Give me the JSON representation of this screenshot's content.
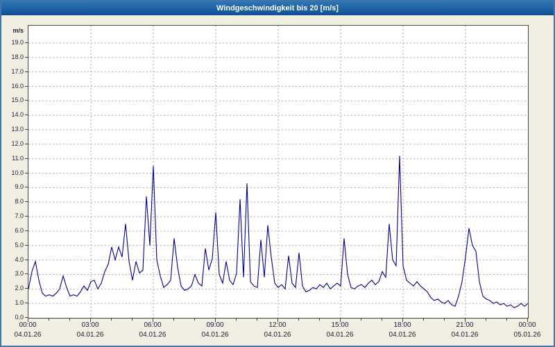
{
  "title_bar": {
    "text": "Windgeschwindigkeit bis 20 [m/s]"
  },
  "chart_data": {
    "type": "line",
    "title": "Windgeschwindigkeit bis 20 [m/s]",
    "ylabel": "m/s",
    "xlabel": "",
    "ylim": [
      0,
      20.2
    ],
    "y_tick_step": 1.0,
    "y_tick_min": 0.0,
    "y_tick_max": 19.0,
    "y_tick_format_decimals": 1,
    "grid": true,
    "legend": "none",
    "line_color": "#00008c",
    "x_hours_span": 24,
    "sample_interval_minutes": 10,
    "x_ticks": [
      {
        "time": "00:00",
        "date": "04.01.26"
      },
      {
        "time": "03:00",
        "date": "04.01.26"
      },
      {
        "time": "06:00",
        "date": "04.01.26"
      },
      {
        "time": "09:00",
        "date": "04.01.26"
      },
      {
        "time": "12:00",
        "date": "04.01.26"
      },
      {
        "time": "15:00",
        "date": "04.01.26"
      },
      {
        "time": "18:00",
        "date": "04.01.26"
      },
      {
        "time": "21:00",
        "date": "04.01.26"
      },
      {
        "time": "00:00",
        "date": "05.01.26"
      }
    ],
    "values": [
      2.0,
      3.2,
      3.9,
      2.6,
      1.7,
      1.5,
      1.6,
      1.5,
      1.7,
      2.0,
      2.9,
      2.1,
      1.5,
      1.6,
      1.5,
      1.8,
      2.2,
      1.9,
      2.5,
      2.6,
      2.0,
      2.4,
      3.2,
      3.7,
      4.9,
      4.0,
      4.9,
      4.2,
      6.5,
      3.9,
      2.6,
      3.9,
      3.1,
      3.3,
      8.4,
      5.0,
      10.5,
      4.0,
      2.9,
      2.1,
      2.3,
      2.6,
      5.5,
      3.5,
      2.2,
      1.9,
      2.0,
      2.2,
      3.0,
      2.4,
      2.2,
      4.8,
      3.3,
      4.1,
      7.3,
      3.0,
      2.4,
      3.9,
      2.6,
      2.3,
      3.1,
      8.2,
      2.8,
      9.3,
      2.5,
      2.2,
      2.1,
      5.4,
      2.8,
      6.4,
      4.2,
      2.4,
      2.1,
      2.3,
      2.0,
      4.3,
      2.4,
      2.1,
      4.5,
      2.2,
      1.8,
      1.9,
      2.1,
      2.0,
      2.3,
      2.1,
      2.4,
      2.0,
      2.2,
      2.4,
      2.2,
      5.5,
      3.0,
      2.1,
      2.0,
      2.2,
      2.3,
      2.1,
      2.4,
      2.6,
      2.3,
      2.5,
      3.2,
      2.8,
      6.5,
      4.0,
      3.6,
      11.2,
      3.6,
      2.6,
      2.4,
      2.2,
      2.5,
      2.2,
      2.0,
      1.8,
      1.4,
      1.2,
      1.3,
      1.1,
      1.0,
      1.2,
      0.9,
      0.8,
      1.5,
      2.5,
      4.2,
      6.2,
      5.0,
      4.6,
      2.5,
      1.5,
      1.3,
      1.2,
      1.0,
      1.1,
      0.9,
      1.0,
      0.8,
      0.9,
      0.7,
      0.8,
      1.0,
      0.8,
      1.0
    ]
  }
}
